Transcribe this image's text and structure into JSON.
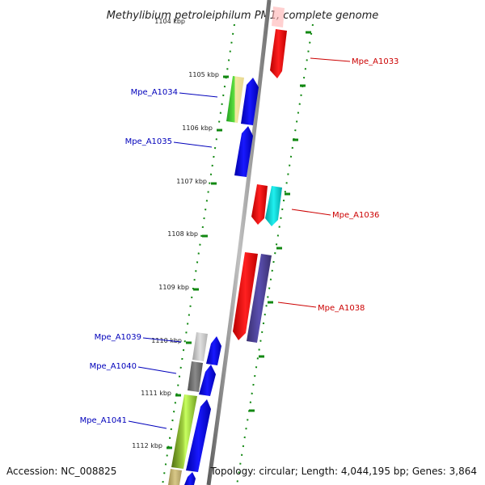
{
  "title": "Methylibium petroleiphilum PM1, complete genome",
  "footer": {
    "accession": "Accession: NC_008825",
    "topology": "Topology: circular; Length: 4,044,195 bp; Genes: 3,864"
  },
  "kbp_marks": [
    "1104 kbp",
    "1105 kbp",
    "1106 kbp",
    "1107 kbp",
    "1108 kbp",
    "1109 kbp",
    "1110 kbp",
    "1111 kbp",
    "1112 kbp"
  ],
  "genes_forward": [
    {
      "id": "Mpe_A1033",
      "color": "#ff0000"
    },
    {
      "id": "Mpe_A1036",
      "color": "#ff0000"
    },
    {
      "id": "cyan-gene",
      "color": "#00d0d0"
    },
    {
      "id": "Mpe_A1038",
      "color": "#ff0000"
    },
    {
      "id": "purple-gene",
      "color": "#4a3f8f"
    }
  ],
  "genes_reverse": [
    {
      "id": "Mpe_A1034",
      "color": "#0000ff"
    },
    {
      "id": "Mpe_A1035",
      "color": "#0000ff"
    },
    {
      "id": "Mpe_A1039",
      "color": "#0000ff"
    },
    {
      "id": "Mpe_A1040",
      "color": "#0000ff"
    },
    {
      "id": "Mpe_A1041",
      "color": "#0000ff"
    }
  ],
  "labels_left": [
    "Mpe_A1034",
    "Mpe_A1035",
    "Mpe_A1039",
    "Mpe_A1040",
    "Mpe_A1041"
  ],
  "labels_right": [
    "Mpe_A1033",
    "Mpe_A1036",
    "Mpe_A1038"
  ],
  "colors": {
    "forward_label": "#cc0000",
    "reverse_label": "#0000bb",
    "tick_green": "#118811",
    "axis_gray": "#808080"
  }
}
